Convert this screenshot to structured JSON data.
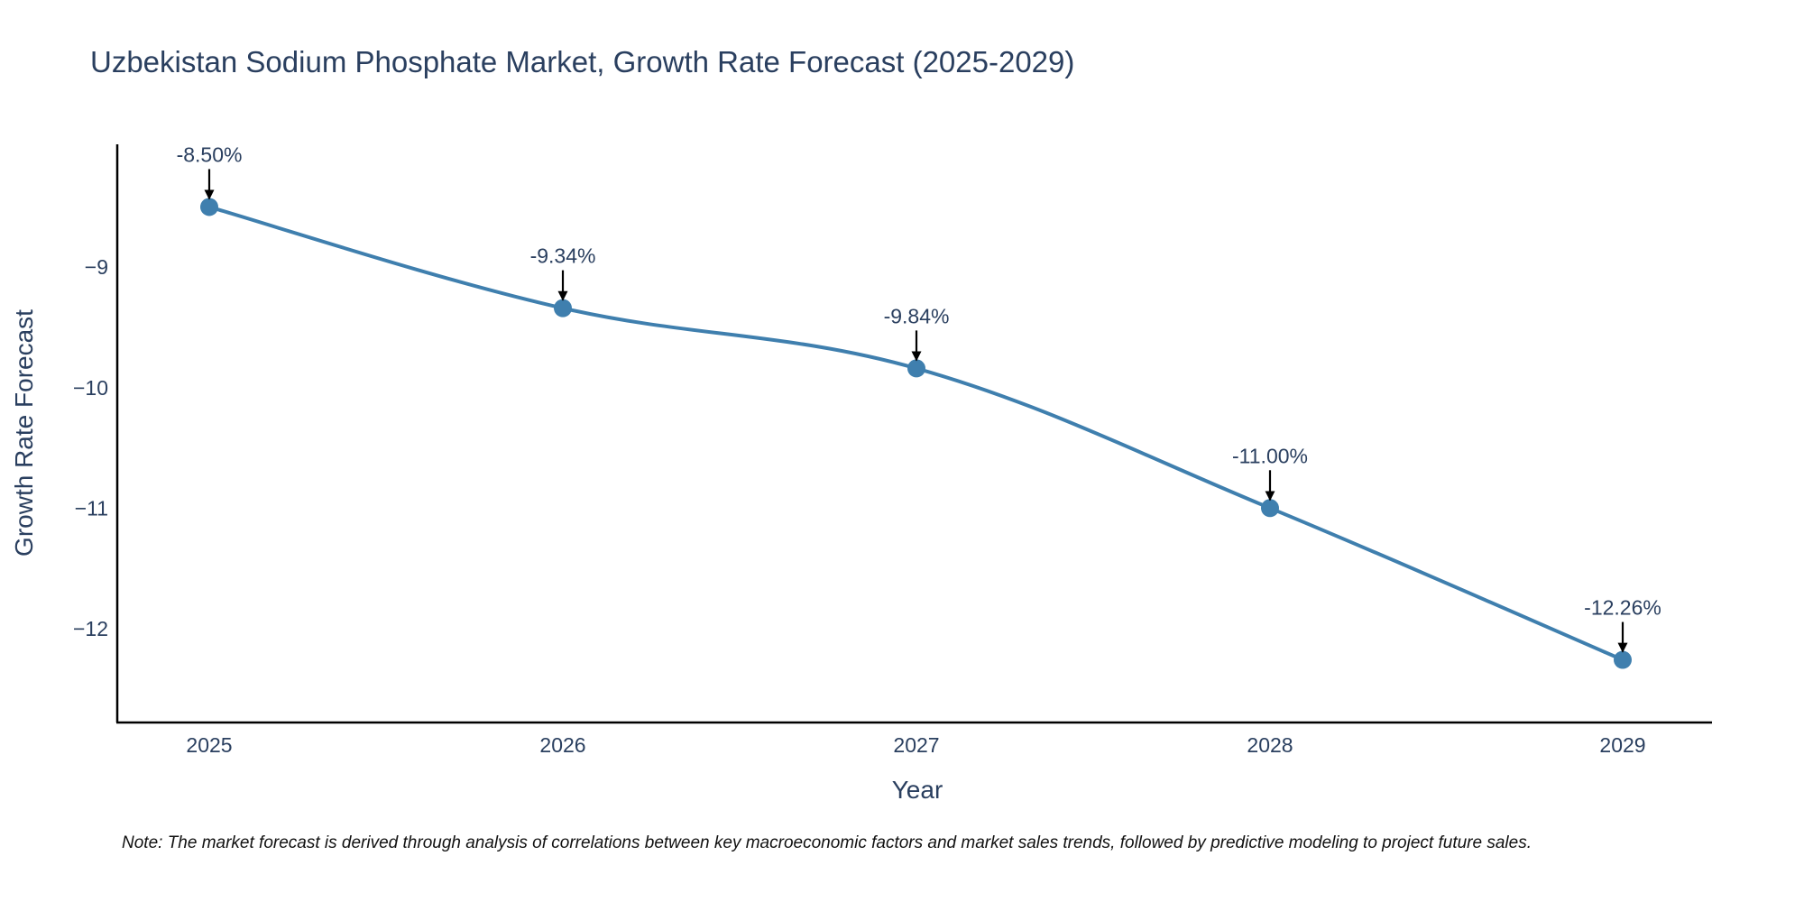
{
  "chart_data": {
    "type": "line",
    "title": "Uzbekistan Sodium Phosphate Market, Growth Rate Forecast (2025-2029)",
    "xlabel": "Year",
    "ylabel": "Growth Rate Forecast",
    "categories": [
      "2025",
      "2026",
      "2027",
      "2028",
      "2029"
    ],
    "series": [
      {
        "name": "Growth Rate Forecast",
        "values": [
          -8.5,
          -9.34,
          -9.84,
          -11.0,
          -12.26
        ],
        "labels": [
          "-8.50%",
          "-9.34%",
          "-9.84%",
          "-11.00%",
          "-12.26%"
        ]
      }
    ],
    "y_ticks": [
      -9,
      -10,
      -11,
      -12
    ],
    "y_tick_labels": [
      "−9",
      "−10",
      "−11",
      "−12"
    ],
    "ylim": [
      -12.78,
      -7.98
    ],
    "grid": false,
    "legend": "none",
    "line_color": "#3f7fae",
    "marker_color": "#3f7fae",
    "axis_color": "#000000",
    "text_color": "#2a3f5f",
    "note": "Note: The market forecast is derived through analysis of correlations between key macroeconomic factors and market sales trends, followed by predictive modeling to project future sales."
  }
}
